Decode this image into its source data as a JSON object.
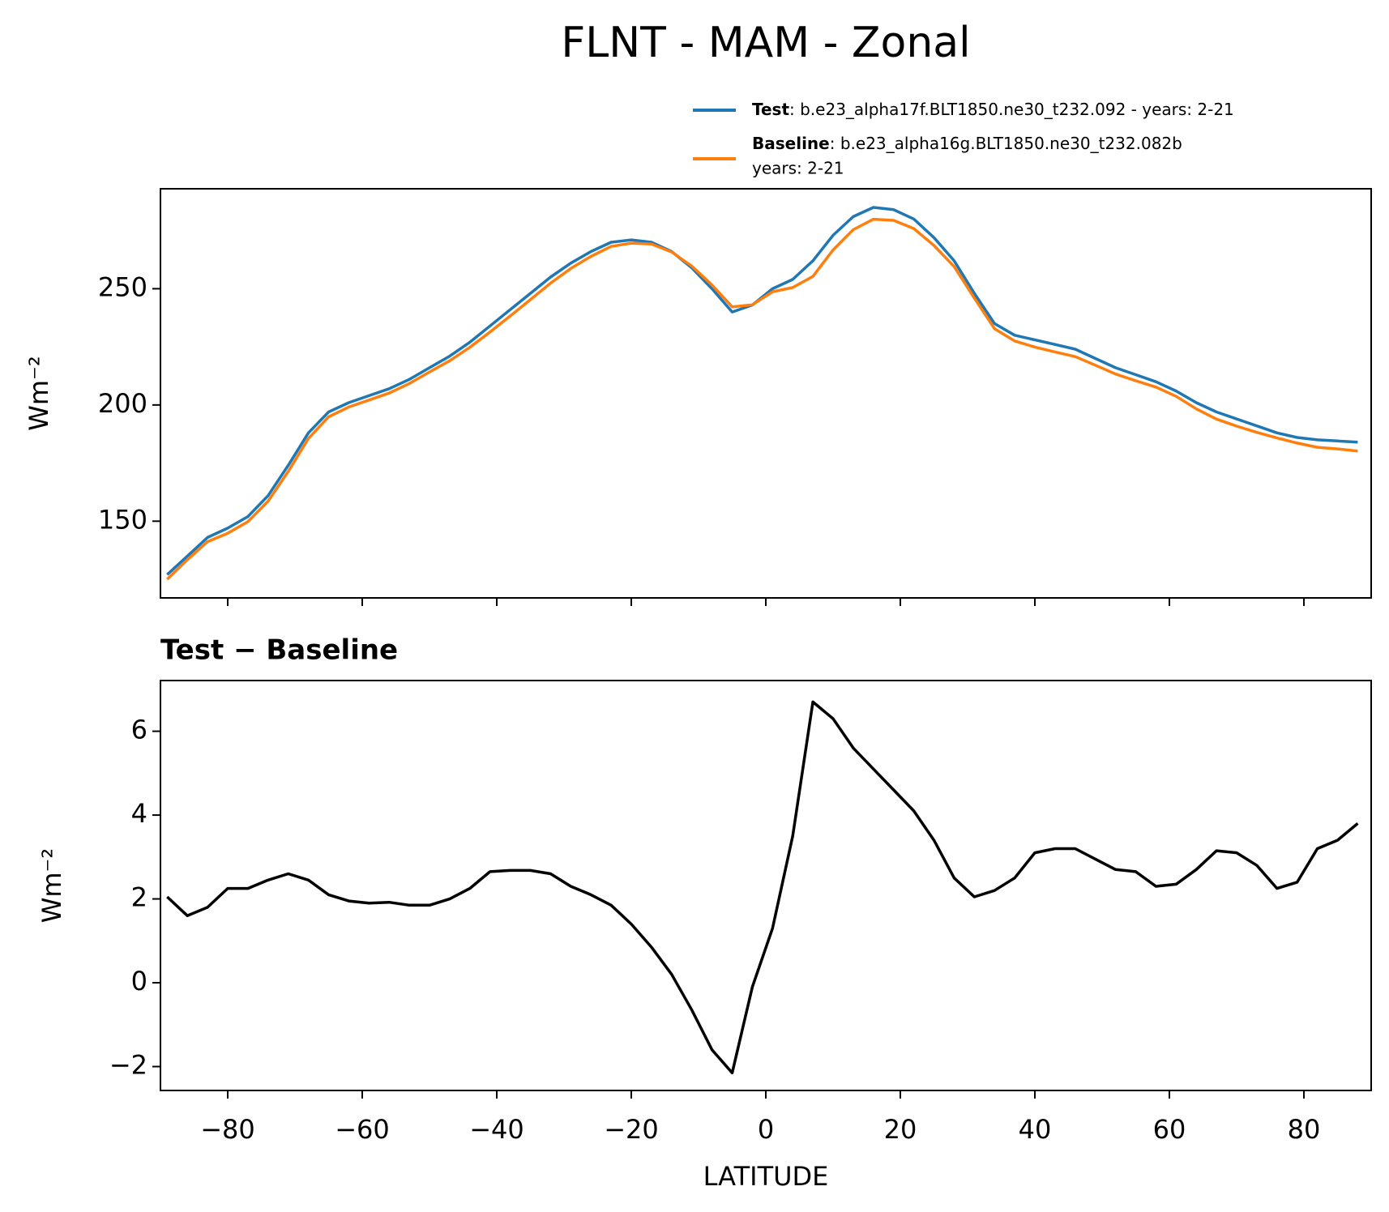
{
  "chart_data": [
    {
      "type": "line",
      "title": "FLNT - MAM - Zonal",
      "ylabel": "Wm⁻²",
      "x": [
        -89,
        -86,
        -83,
        -80,
        -77,
        -74,
        -71,
        -68,
        -65,
        -62,
        -59,
        -56,
        -53,
        -50,
        -47,
        -44,
        -41,
        -38,
        -35,
        -32,
        -29,
        -26,
        -23,
        -20,
        -17,
        -14,
        -11,
        -8,
        -5,
        -2,
        1,
        4,
        7,
        10,
        13,
        16,
        19,
        22,
        25,
        28,
        31,
        34,
        37,
        40,
        43,
        46,
        49,
        52,
        55,
        58,
        61,
        64,
        67,
        70,
        73,
        76,
        79,
        82,
        85,
        88
      ],
      "series": [
        {
          "name": "Test",
          "legend_lines": [
            ": b.e23_alpha17f.BLT1850.ne30_t232.092 - years: 2-21"
          ],
          "color": "#1f77b4",
          "values": [
            127,
            135,
            143,
            147,
            152,
            161,
            174,
            188,
            197,
            201,
            204,
            207,
            211,
            216,
            221,
            227,
            234,
            241,
            248,
            255,
            261,
            266,
            270,
            271,
            270,
            266,
            259,
            250,
            240,
            243,
            250,
            254,
            262,
            273,
            281,
            285,
            284,
            280,
            272,
            262,
            248,
            235,
            230,
            228,
            226,
            224,
            220,
            216,
            213,
            210,
            206,
            201,
            197,
            194,
            191,
            188,
            186,
            185,
            184.5,
            184
          ]
        },
        {
          "name": "Baseline",
          "legend_lines": [
            ": b.e23_alpha16g.BLT1850.ne30_t232.082b",
            "years: 2-21"
          ],
          "color": "#ff7f0e",
          "values": [
            125,
            133.4,
            141.2,
            144.8,
            149.8,
            158.6,
            171.4,
            185.6,
            194.9,
            199.1,
            202.1,
            205.1,
            209.2,
            214.2,
            219,
            224.8,
            231.4,
            238.3,
            245.3,
            252.4,
            258.7,
            263.9,
            268.2,
            269.6,
            269.2,
            265.8,
            259.7,
            251.6,
            242.2,
            243.1,
            248.7,
            250.5,
            255.3,
            266.7,
            275.4,
            279.9,
            279.4,
            275.9,
            268.6,
            259.5,
            246,
            232.8,
            227.5,
            224.9,
            222.8,
            220.8,
            217.1,
            213.3,
            210.4,
            207.7,
            203.7,
            198.3,
            193.9,
            190.9,
            188.2,
            185.8,
            183.6,
            181.8,
            181.1,
            180.2
          ]
        }
      ],
      "xlim": [
        -90,
        90
      ],
      "xticks": [
        -80,
        -60,
        -40,
        -20,
        0,
        20,
        40,
        60,
        80
      ],
      "xticklabels": false,
      "ylim": [
        117,
        293
      ],
      "yticks": [
        150,
        200,
        250
      ]
    },
    {
      "type": "line",
      "title": "Test − Baseline",
      "ylabel": "Wm⁻²",
      "xlabel": "LATITUDE",
      "x": [
        -89,
        -86,
        -83,
        -80,
        -77,
        -74,
        -71,
        -68,
        -65,
        -62,
        -59,
        -56,
        -53,
        -50,
        -47,
        -44,
        -41,
        -38,
        -35,
        -32,
        -29,
        -26,
        -23,
        -20,
        -17,
        -14,
        -11,
        -8,
        -5,
        -2,
        1,
        4,
        7,
        10,
        13,
        16,
        19,
        22,
        25,
        28,
        31,
        34,
        37,
        40,
        43,
        46,
        49,
        52,
        55,
        58,
        61,
        64,
        67,
        70,
        73,
        76,
        79,
        82,
        85,
        88
      ],
      "series": [
        {
          "color": "#000000",
          "values": [
            2.05,
            1.6,
            1.8,
            2.25,
            2.25,
            2.45,
            2.6,
            2.45,
            2.1,
            1.95,
            1.9,
            1.92,
            1.85,
            1.85,
            2.0,
            2.25,
            2.65,
            2.68,
            2.68,
            2.6,
            2.3,
            2.1,
            1.85,
            1.4,
            0.85,
            0.2,
            -0.65,
            -1.6,
            -2.15,
            -0.1,
            1.3,
            3.5,
            6.7,
            6.3,
            5.6,
            5.1,
            4.6,
            4.1,
            3.4,
            2.5,
            2.05,
            2.2,
            2.5,
            3.1,
            3.2,
            3.2,
            2.95,
            2.7,
            2.65,
            2.3,
            2.35,
            2.7,
            3.15,
            3.1,
            2.8,
            2.25,
            2.4,
            3.2,
            3.4,
            3.8
          ]
        }
      ],
      "xlim": [
        -90,
        90
      ],
      "xticks": [
        {
          "value": -80,
          "label": "−80"
        },
        {
          "value": -60,
          "label": "−60"
        },
        {
          "value": -40,
          "label": "−40"
        },
        {
          "value": -20,
          "label": "−20"
        },
        0,
        20,
        40,
        60,
        80
      ],
      "xticklabels": true,
      "ylim": [
        -2.57,
        7.21
      ],
      "yticks": [
        {
          "value": -2,
          "label": "−2"
        },
        0,
        2,
        4,
        6
      ]
    }
  ]
}
